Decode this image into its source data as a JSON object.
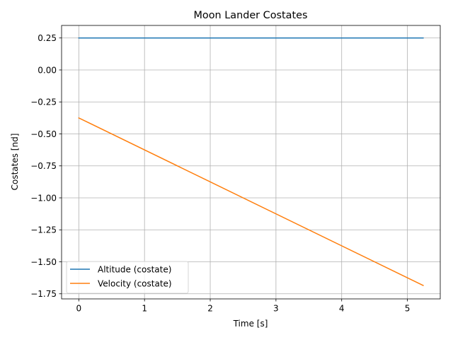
{
  "chart_data": {
    "type": "line",
    "title": "Moon Lander Costates",
    "xlabel": "Time [s]",
    "ylabel": "Costates [nd]",
    "xlim": [
      -0.262,
      5.5
    ],
    "ylim": [
      -1.79,
      0.348
    ],
    "xticks": [
      0,
      1,
      2,
      3,
      4,
      5
    ],
    "xtick_labels": [
      "0",
      "1",
      "2",
      "3",
      "4",
      "5"
    ],
    "yticks": [
      0.25,
      0.0,
      -0.25,
      -0.5,
      -0.75,
      -1.0,
      -1.25,
      -1.5,
      -1.75
    ],
    "ytick_labels": [
      "0.25",
      "0.00",
      "−0.25",
      "−0.50",
      "−0.75",
      "−1.00",
      "−1.25",
      "−1.50",
      "−1.75"
    ],
    "grid": true,
    "legend_position": "lower-left",
    "series": [
      {
        "name": "Altitude (costate)",
        "color": "#1f77b4",
        "x": [
          0,
          5.24
        ],
        "y": [
          0.25,
          0.25
        ]
      },
      {
        "name": "Velocity (costate)",
        "color": "#ff7f0e",
        "x": [
          0,
          5.24
        ],
        "y": [
          -0.375,
          -1.685
        ]
      }
    ]
  }
}
